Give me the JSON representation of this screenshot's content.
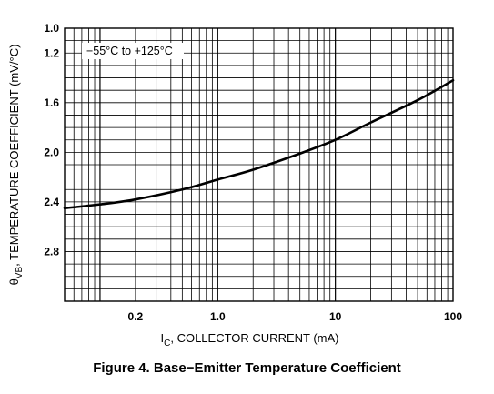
{
  "chart_data": {
    "type": "line",
    "x_scale": "log",
    "xlim": [
      0.05,
      100
    ],
    "ylim": [
      1.0,
      3.2
    ],
    "y_inverted": true,
    "grid": true,
    "x_ticks": [
      {
        "value": 0.2,
        "label": "0.2"
      },
      {
        "value": 1,
        "label": "1.0"
      },
      {
        "value": 10,
        "label": "10"
      },
      {
        "value": 100,
        "label": "100"
      }
    ],
    "y_ticks": [
      {
        "value": 1.0,
        "label": "1.0"
      },
      {
        "value": 1.2,
        "label": "1.2"
      },
      {
        "value": 1.6,
        "label": "1.6"
      },
      {
        "value": 2.0,
        "label": "2.0"
      },
      {
        "value": 2.4,
        "label": "2.4"
      },
      {
        "value": 2.8,
        "label": "2.8"
      }
    ],
    "xlabel": {
      "main": "I",
      "sub": "C",
      "rest": ", COLLECTOR CURRENT (mA)"
    },
    "ylabel": {
      "main": "θ",
      "sub": "VB",
      "rest": ", TEMPERATURE COEFFICIENT (mV/°C)"
    },
    "annotation": "−55°C to +125°C",
    "series": [
      {
        "color": "#000000",
        "x": [
          0.05,
          0.1,
          0.2,
          0.5,
          1,
          2,
          5,
          10,
          20,
          50,
          100
        ],
        "y": [
          2.45,
          2.42,
          2.38,
          2.3,
          2.22,
          2.14,
          2.01,
          1.9,
          1.76,
          1.58,
          1.42
        ]
      }
    ]
  },
  "caption": "Figure 4. Base−Emitter Temperature Coefficient"
}
